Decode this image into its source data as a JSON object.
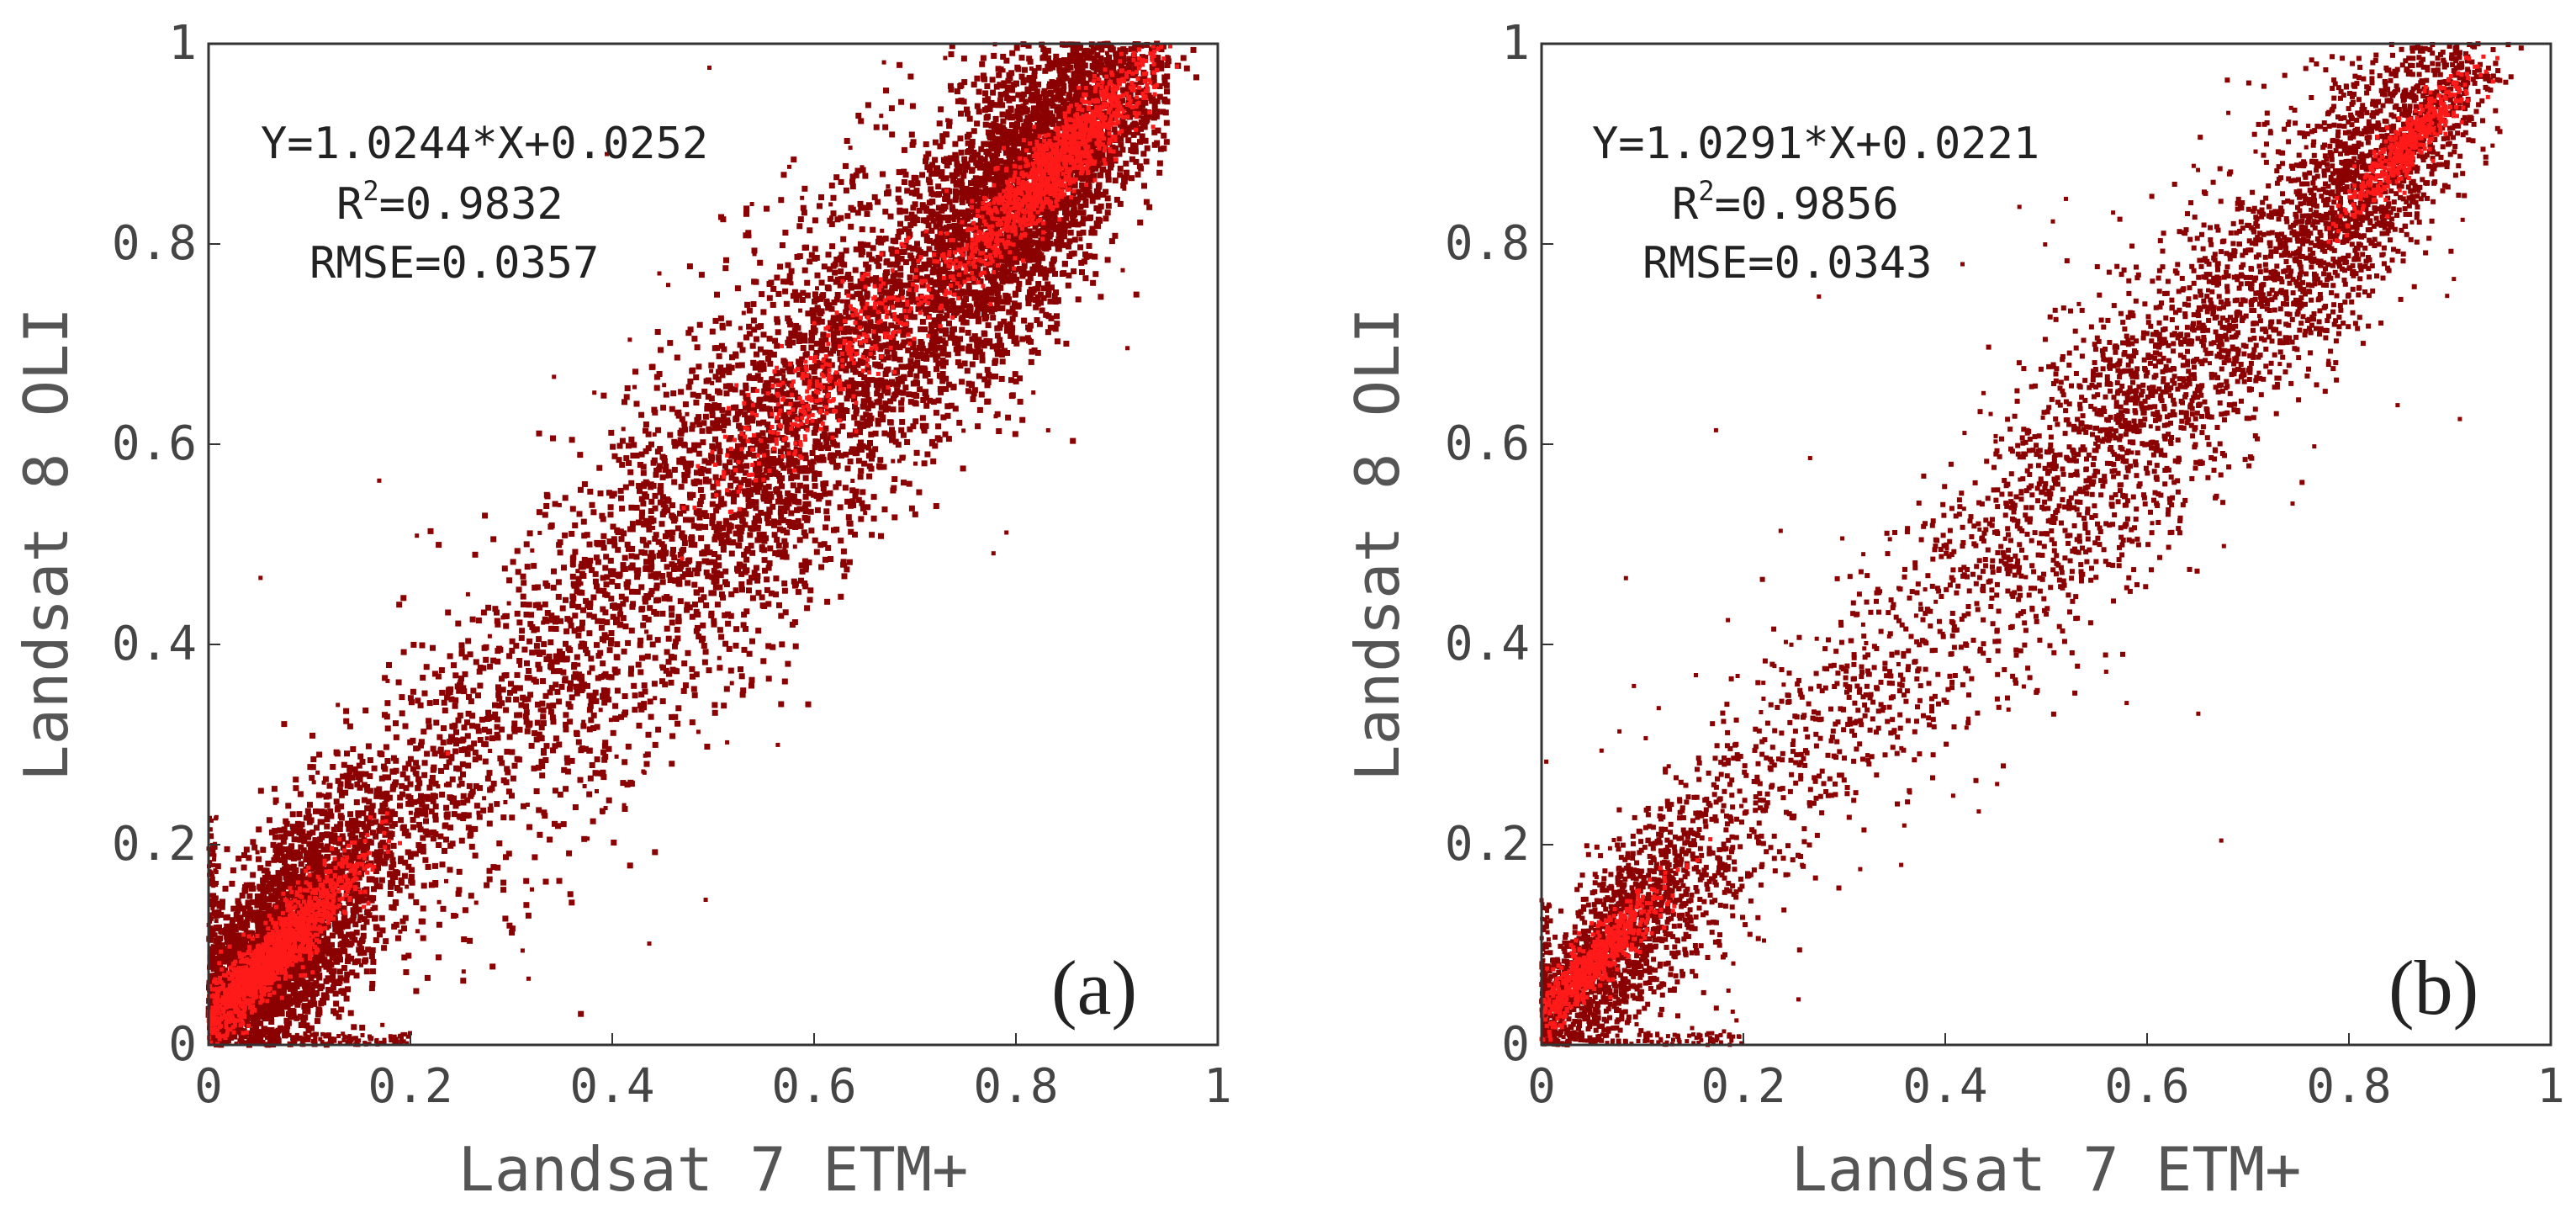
{
  "figure": "scatter-density-comparison",
  "chart_data": [
    {
      "type": "scatter",
      "panel_label": "(a)",
      "xlabel": "Landsat 7 ETM+",
      "ylabel": "Landsat 8 OLI",
      "xlim": [
        0,
        1
      ],
      "ylim": [
        0,
        1
      ],
      "xticks": [
        "0",
        "0.2",
        "0.4",
        "0.6",
        "0.8",
        "1"
      ],
      "yticks": [
        "0",
        "0.2",
        "0.4",
        "0.6",
        "0.8",
        "1"
      ],
      "annotations": {
        "equation": "Y=1.0244*X+0.0252",
        "r2_prefix": "R",
        "r2_sup": "2",
        "r2_value": "=0.9832",
        "rmse": "RMSE=0.0357"
      },
      "fit": {
        "slope": 1.0244,
        "intercept": 0.0252,
        "r2": 0.9832,
        "rmse": 0.0357
      },
      "density": "high",
      "colors": {
        "points": "#8b0000",
        "dense": "#ff1a1a"
      }
    },
    {
      "type": "scatter",
      "panel_label": "(b)",
      "xlabel": "Landsat 7 ETM+",
      "ylabel": "Landsat 8 OLI",
      "xlim": [
        0,
        1
      ],
      "ylim": [
        0,
        1
      ],
      "xticks": [
        "0",
        "0.2",
        "0.4",
        "0.6",
        "0.8",
        "1"
      ],
      "yticks": [
        "0",
        "0.2",
        "0.4",
        "0.6",
        "0.8",
        "1"
      ],
      "annotations": {
        "equation": "Y=1.0291*X+0.0221",
        "r2_prefix": "R",
        "r2_sup": "2",
        "r2_value": "=0.9856",
        "rmse": "RMSE=0.0343"
      },
      "fit": {
        "slope": 1.0291,
        "intercept": 0.0221,
        "r2": 0.9856,
        "rmse": 0.0343
      },
      "density": "low",
      "colors": {
        "points": "#8b0000",
        "dense": "#ff1a1a"
      }
    }
  ]
}
